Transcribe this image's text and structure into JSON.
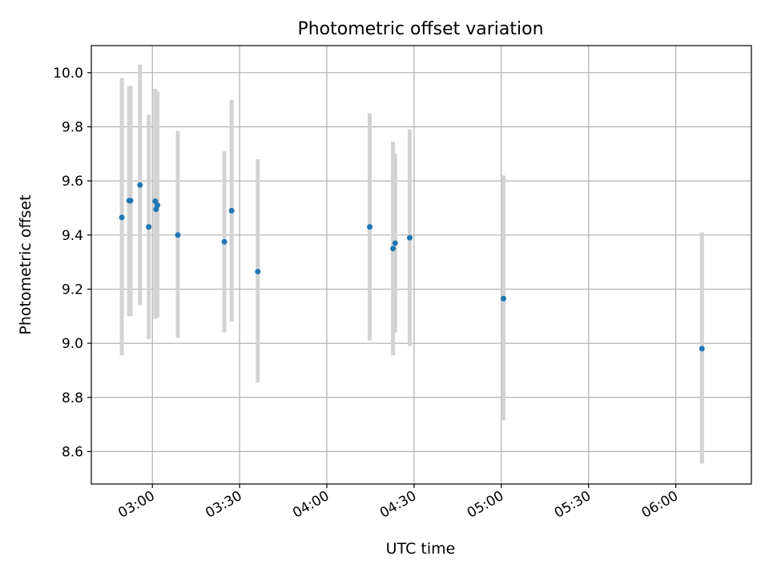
{
  "chart_data": {
    "type": "scatter",
    "title": "Photometric offset variation",
    "xlabel": "UTC time",
    "ylabel": "Photometric offset",
    "xlim": [
      "02:39",
      "06:26"
    ],
    "ylim": [
      8.48,
      10.1
    ],
    "grid": true,
    "x_ticks": [
      "03:00",
      "03:30",
      "04:00",
      "04:30",
      "05:00",
      "05:30",
      "06:00"
    ],
    "y_ticks": [
      "8.6",
      "8.8",
      "9.0",
      "9.2",
      "9.4",
      "9.6",
      "9.8",
      "10.0"
    ],
    "colors": {
      "point": "#1f77b4",
      "errorbar": "#d3d3d3",
      "grid": "#b0b0b0"
    },
    "points": [
      {
        "x": "02:49:30",
        "y": 9.465,
        "yerr_low": 8.955,
        "yerr_high": 9.98
      },
      {
        "x": "02:52:00",
        "y": 9.527,
        "yerr_low": 9.1,
        "yerr_high": 9.95
      },
      {
        "x": "02:52:30",
        "y": 9.527,
        "yerr_low": 9.1,
        "yerr_high": 9.95
      },
      {
        "x": "02:55:45",
        "y": 9.585,
        "yerr_low": 9.14,
        "yerr_high": 10.03
      },
      {
        "x": "02:58:45",
        "y": 9.43,
        "yerr_low": 9.015,
        "yerr_high": 9.845
      },
      {
        "x": "03:01:00",
        "y": 9.525,
        "yerr_low": 9.09,
        "yerr_high": 9.94
      },
      {
        "x": "03:01:15",
        "y": 9.495,
        "yerr_low": 9.095,
        "yerr_high": 9.93
      },
      {
        "x": "03:01:45",
        "y": 9.51,
        "yerr_low": 9.095,
        "yerr_high": 9.93
      },
      {
        "x": "03:08:45",
        "y": 9.4,
        "yerr_low": 9.02,
        "yerr_high": 9.785
      },
      {
        "x": "03:24:45",
        "y": 9.375,
        "yerr_low": 9.04,
        "yerr_high": 9.71
      },
      {
        "x": "03:27:15",
        "y": 9.49,
        "yerr_low": 9.08,
        "yerr_high": 9.9
      },
      {
        "x": "03:36:15",
        "y": 9.265,
        "yerr_low": 8.855,
        "yerr_high": 9.68
      },
      {
        "x": "04:14:45",
        "y": 9.43,
        "yerr_low": 9.01,
        "yerr_high": 9.85
      },
      {
        "x": "04:22:45",
        "y": 9.35,
        "yerr_low": 8.955,
        "yerr_high": 9.745
      },
      {
        "x": "04:23:30",
        "y": 9.37,
        "yerr_low": 9.04,
        "yerr_high": 9.7
      },
      {
        "x": "04:28:30",
        "y": 9.39,
        "yerr_low": 8.99,
        "yerr_high": 9.79
      },
      {
        "x": "05:00:45",
        "y": 9.165,
        "yerr_low": 8.715,
        "yerr_high": 9.62
      },
      {
        "x": "06:09:00",
        "y": 8.98,
        "yerr_low": 8.555,
        "yerr_high": 9.41
      }
    ]
  }
}
